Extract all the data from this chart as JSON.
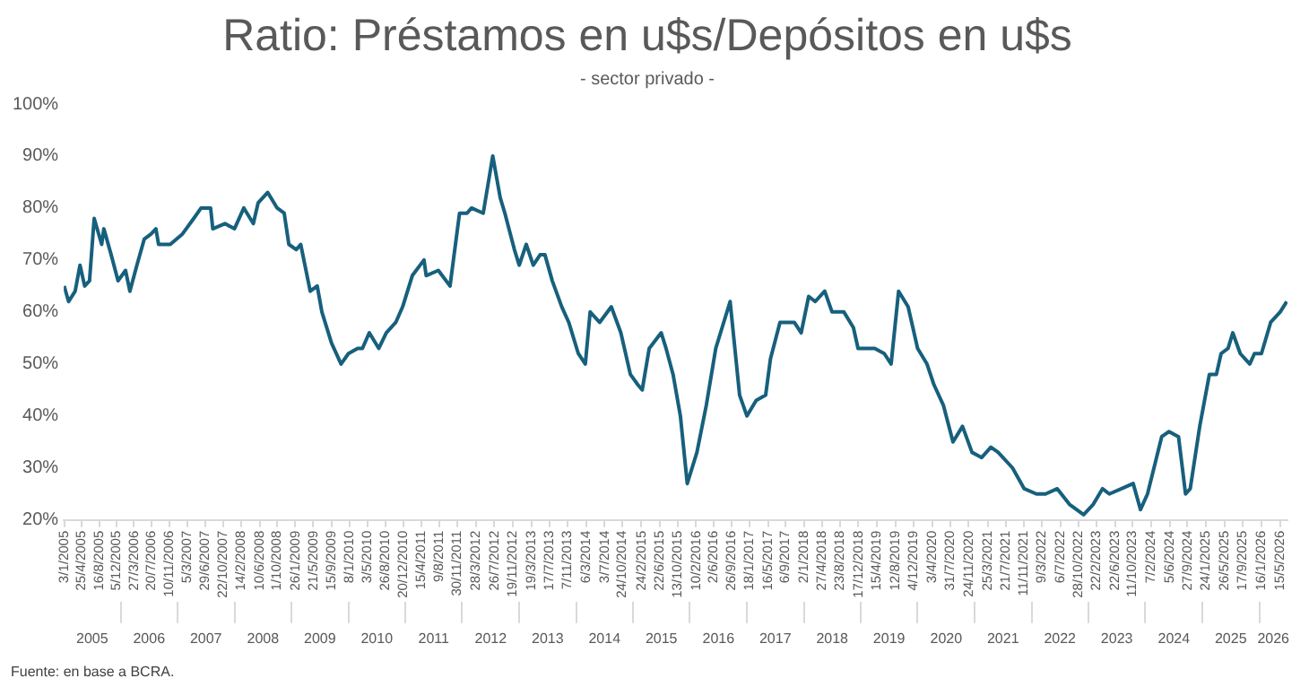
{
  "chart_data": {
    "type": "line",
    "title": "Ratio: Préstamos en u$s/Depósitos en u$s",
    "subtitle": "- sector privado -",
    "annotations": [
      "Fuente: en base a BCRA."
    ],
    "color": "#17607d",
    "grid": false,
    "legend": false,
    "marker": "none",
    "line_style": "solid",
    "x": [
      "2005-01-03",
      "2005-02-01",
      "2005-03-15",
      "2005-04-15",
      "2005-05-15",
      "2005-06-15",
      "2005-07-15",
      "2005-09-01",
      "2005-09-15",
      "2005-11-01",
      "2005-12-15",
      "2006-02-01",
      "2006-03-01",
      "2006-04-15",
      "2006-06-01",
      "2006-07-15",
      "2006-08-15",
      "2006-09-01",
      "2006-11-15",
      "2007-02-01",
      "2007-04-15",
      "2007-06-01",
      "2007-08-01",
      "2007-08-15",
      "2007-11-01",
      "2008-01-01",
      "2008-03-01",
      "2008-05-01",
      "2008-06-01",
      "2008-08-01",
      "2008-10-01",
      "2008-11-15",
      "2008-12-15",
      "2009-02-01",
      "2009-03-01",
      "2009-05-01",
      "2009-06-15",
      "2009-07-15",
      "2009-09-15",
      "2009-11-15",
      "2010-01-01",
      "2010-03-01",
      "2010-04-01",
      "2010-05-15",
      "2010-07-15",
      "2010-09-01",
      "2010-11-01",
      "2010-12-15",
      "2011-02-15",
      "2011-05-01",
      "2011-05-15",
      "2011-08-01",
      "2011-10-15",
      "2011-12-15",
      "2012-02-01",
      "2012-03-01",
      "2012-05-15",
      "2012-07-15",
      "2012-09-01",
      "2012-10-01",
      "2012-12-01",
      "2013-01-01",
      "2013-02-15",
      "2013-04-01",
      "2013-05-15",
      "2013-06-15",
      "2013-08-01",
      "2013-10-01",
      "2013-11-15",
      "2014-01-15",
      "2014-03-01",
      "2014-04-01",
      "2014-06-01",
      "2014-08-15",
      "2014-10-15",
      "2014-12-15",
      "2015-02-01",
      "2015-03-01",
      "2015-04-15",
      "2015-07-01",
      "2015-08-01",
      "2015-09-15",
      "2015-11-01",
      "2015-12-15",
      "2016-02-15",
      "2016-04-15",
      "2016-06-15",
      "2016-09-15",
      "2016-11-15",
      "2017-01-01",
      "2017-03-01",
      "2017-05-01",
      "2017-06-01",
      "2017-08-01",
      "2017-11-01",
      "2017-12-15",
      "2018-02-01",
      "2018-03-15",
      "2018-05-15",
      "2018-07-01",
      "2018-09-15",
      "2018-11-15",
      "2018-12-15",
      "2019-04-01",
      "2019-06-01",
      "2019-07-15",
      "2019-09-01",
      "2019-11-01",
      "2020-01-01",
      "2020-03-01",
      "2020-04-15",
      "2020-06-15",
      "2020-08-15",
      "2020-10-15",
      "2020-12-15",
      "2021-02-15",
      "2021-04-15",
      "2021-06-01",
      "2021-09-01",
      "2021-11-15",
      "2022-02-01",
      "2022-04-01",
      "2022-06-15",
      "2022-09-01",
      "2022-12-01",
      "2023-02-01",
      "2023-04-01",
      "2023-05-15",
      "2023-08-01",
      "2023-10-15",
      "2023-12-01",
      "2024-01-15",
      "2024-04-15",
      "2024-06-01",
      "2024-08-01",
      "2024-09-15",
      "2024-10-15",
      "2024-12-15",
      "2025-02-15",
      "2025-04-01",
      "2025-05-01",
      "2025-06-15",
      "2025-07-15",
      "2025-09-01",
      "2025-11-01",
      "2025-12-01",
      "2026-01-15",
      "2026-03-15",
      "2026-05-15",
      "2026-06-26"
    ],
    "values": [
      65,
      62,
      64,
      69,
      65,
      66,
      78,
      73,
      76,
      71,
      66,
      68,
      64,
      69,
      74,
      75,
      76,
      73,
      73,
      75,
      78,
      80,
      80,
      76,
      77,
      76,
      80,
      77,
      81,
      83,
      80,
      79,
      73,
      72,
      73,
      64,
      65,
      60,
      54,
      50,
      52,
      53,
      53,
      56,
      53,
      56,
      58,
      61,
      67,
      70,
      67,
      68,
      65,
      79,
      79,
      80,
      79,
      90,
      82,
      79,
      72,
      69,
      73,
      69,
      71,
      71,
      66,
      61,
      58,
      52,
      50,
      60,
      58,
      61,
      56,
      48,
      46,
      45,
      53,
      56,
      53,
      48,
      40,
      27,
      33,
      42,
      53,
      62,
      44,
      40,
      43,
      44,
      51,
      58,
      58,
      56,
      63,
      62,
      64,
      60,
      60,
      57,
      53,
      53,
      52,
      50,
      64,
      61,
      53,
      50,
      46,
      42,
      35,
      38,
      33,
      32,
      34,
      33,
      30,
      26,
      25,
      25,
      26,
      23,
      21,
      23,
      26,
      25,
      26,
      27,
      22,
      25,
      36,
      37,
      36,
      25,
      26,
      38,
      48,
      48,
      52,
      53,
      56,
      52,
      50,
      52,
      52,
      58,
      60,
      62
    ],
    "ylim": [
      20,
      100
    ],
    "yticks": [
      {
        "value": 20,
        "label": "20%"
      },
      {
        "value": 30,
        "label": "30%"
      },
      {
        "value": 40,
        "label": "40%"
      },
      {
        "value": 50,
        "label": "50%"
      },
      {
        "value": 60,
        "label": "60%"
      },
      {
        "value": 70,
        "label": "70%"
      },
      {
        "value": 80,
        "label": "80%"
      },
      {
        "value": 90,
        "label": "90%"
      },
      {
        "value": 100,
        "label": "100%"
      }
    ],
    "xlim": [
      "2005-01-01",
      "2026-07-01"
    ],
    "xticks": [
      {
        "value": "2005-01-03",
        "label": "3/1/2005"
      },
      {
        "value": "2005-04-25",
        "label": "25/4/2005"
      },
      {
        "value": "2005-08-16",
        "label": "16/8/2005"
      },
      {
        "value": "2005-12-05",
        "label": "5/12/2005"
      },
      {
        "value": "2006-03-27",
        "label": "27/3/2006"
      },
      {
        "value": "2006-07-20",
        "label": "20/7/2006"
      },
      {
        "value": "2006-11-10",
        "label": "10/11/2006"
      },
      {
        "value": "2007-03-05",
        "label": "5/3/2007"
      },
      {
        "value": "2007-06-29",
        "label": "29/6/2007"
      },
      {
        "value": "2007-10-22",
        "label": "22/10/2007"
      },
      {
        "value": "2008-02-14",
        "label": "14/2/2008"
      },
      {
        "value": "2008-06-10",
        "label": "10/6/2008"
      },
      {
        "value": "2008-10-01",
        "label": "1/10/2008"
      },
      {
        "value": "2009-01-26",
        "label": "26/1/2009"
      },
      {
        "value": "2009-05-21",
        "label": "21/5/2009"
      },
      {
        "value": "2009-09-15",
        "label": "15/9/2009"
      },
      {
        "value": "2010-01-08",
        "label": "8/1/2010"
      },
      {
        "value": "2010-05-03",
        "label": "3/5/2010"
      },
      {
        "value": "2010-08-26",
        "label": "26/8/2010"
      },
      {
        "value": "2010-12-20",
        "label": "20/12/2010"
      },
      {
        "value": "2011-04-15",
        "label": "15/4/2011"
      },
      {
        "value": "2011-08-09",
        "label": "9/8/2011"
      },
      {
        "value": "2011-11-30",
        "label": "30/11/2011"
      },
      {
        "value": "2012-03-28",
        "label": "28/3/2012"
      },
      {
        "value": "2012-07-26",
        "label": "26/7/2012"
      },
      {
        "value": "2012-11-19",
        "label": "19/11/2012"
      },
      {
        "value": "2013-03-19",
        "label": "19/3/2013"
      },
      {
        "value": "2013-07-17",
        "label": "17/7/2013"
      },
      {
        "value": "2013-11-07",
        "label": "7/11/2013"
      },
      {
        "value": "2014-03-06",
        "label": "6/3/2014"
      },
      {
        "value": "2014-07-03",
        "label": "3/7/2014"
      },
      {
        "value": "2014-10-24",
        "label": "24/10/2014"
      },
      {
        "value": "2015-02-24",
        "label": "24/2/2015"
      },
      {
        "value": "2015-06-22",
        "label": "22/6/2015"
      },
      {
        "value": "2015-10-13",
        "label": "13/10/2015"
      },
      {
        "value": "2016-02-10",
        "label": "10/2/2016"
      },
      {
        "value": "2016-06-02",
        "label": "2/6/2016"
      },
      {
        "value": "2016-09-26",
        "label": "26/9/2016"
      },
      {
        "value": "2017-01-18",
        "label": "18/1/2017"
      },
      {
        "value": "2017-05-16",
        "label": "16/5/2017"
      },
      {
        "value": "2017-09-06",
        "label": "6/9/2017"
      },
      {
        "value": "2018-01-02",
        "label": "2/1/2018"
      },
      {
        "value": "2018-04-27",
        "label": "27/4/2018"
      },
      {
        "value": "2018-08-23",
        "label": "23/8/2018"
      },
      {
        "value": "2018-12-17",
        "label": "17/12/2018"
      },
      {
        "value": "2019-04-15",
        "label": "15/4/2019"
      },
      {
        "value": "2019-08-12",
        "label": "12/8/2019"
      },
      {
        "value": "2019-12-04",
        "label": "4/12/2019"
      },
      {
        "value": "2020-04-03",
        "label": "3/4/2020"
      },
      {
        "value": "2020-07-31",
        "label": "31/7/2020"
      },
      {
        "value": "2020-11-24",
        "label": "24/11/2020"
      },
      {
        "value": "2021-03-25",
        "label": "25/3/2021"
      },
      {
        "value": "2021-07-21",
        "label": "21/7/2021"
      },
      {
        "value": "2021-11-11",
        "label": "11/11/2021"
      },
      {
        "value": "2022-03-09",
        "label": "9/3/2022"
      },
      {
        "value": "2022-07-06",
        "label": "6/7/2022"
      },
      {
        "value": "2022-10-28",
        "label": "28/10/2022"
      },
      {
        "value": "2023-02-22",
        "label": "22/2/2023"
      },
      {
        "value": "2023-06-22",
        "label": "22/6/2023"
      },
      {
        "value": "2023-10-11",
        "label": "11/10/2023"
      },
      {
        "value": "2024-02-07",
        "label": "7/2/2024"
      },
      {
        "value": "2024-06-05",
        "label": "5/6/2024"
      },
      {
        "value": "2024-09-27",
        "label": "27/9/2024"
      },
      {
        "value": "2025-01-24",
        "label": "24/1/2025"
      },
      {
        "value": "2025-05-26",
        "label": "26/5/2025"
      },
      {
        "value": "2025-09-17",
        "label": "17/9/2025"
      },
      {
        "value": "2026-01-16",
        "label": "16/1/2026"
      },
      {
        "value": "2026-05-15",
        "label": "15/5/2026"
      }
    ],
    "x2lim": [
      "2005-01-01",
      "2026-07-01"
    ],
    "x2ticks": [
      {
        "value": "2005-07-02",
        "label": "2005"
      },
      {
        "value": "2006-01-01",
        "label": null
      },
      {
        "value": "2006-07-02",
        "label": "2006"
      },
      {
        "value": "2007-01-01",
        "label": null
      },
      {
        "value": "2007-07-02",
        "label": "2007"
      },
      {
        "value": "2008-01-01",
        "label": null
      },
      {
        "value": "2008-07-02",
        "label": "2008"
      },
      {
        "value": "2009-01-01",
        "label": null
      },
      {
        "value": "2009-07-02",
        "label": "2009"
      },
      {
        "value": "2010-01-01",
        "label": null
      },
      {
        "value": "2010-07-02",
        "label": "2010"
      },
      {
        "value": "2011-01-01",
        "label": null
      },
      {
        "value": "2011-07-02",
        "label": "2011"
      },
      {
        "value": "2012-01-01",
        "label": null
      },
      {
        "value": "2012-07-02",
        "label": "2012"
      },
      {
        "value": "2013-01-01",
        "label": null
      },
      {
        "value": "2013-07-02",
        "label": "2013"
      },
      {
        "value": "2014-01-01",
        "label": null
      },
      {
        "value": "2014-07-02",
        "label": "2014"
      },
      {
        "value": "2015-01-01",
        "label": null
      },
      {
        "value": "2015-07-02",
        "label": "2015"
      },
      {
        "value": "2016-01-01",
        "label": null
      },
      {
        "value": "2016-07-02",
        "label": "2016"
      },
      {
        "value": "2017-01-01",
        "label": null
      },
      {
        "value": "2017-07-02",
        "label": "2017"
      },
      {
        "value": "2018-01-01",
        "label": null
      },
      {
        "value": "2018-07-02",
        "label": "2018"
      },
      {
        "value": "2019-01-01",
        "label": null
      },
      {
        "value": "2019-07-02",
        "label": "2019"
      },
      {
        "value": "2020-01-01",
        "label": null
      },
      {
        "value": "2020-07-02",
        "label": "2020"
      },
      {
        "value": "2021-01-01",
        "label": null
      },
      {
        "value": "2021-07-02",
        "label": "2021"
      },
      {
        "value": "2022-01-01",
        "label": null
      },
      {
        "value": "2022-07-02",
        "label": "2022"
      },
      {
        "value": "2023-01-01",
        "label": null
      },
      {
        "value": "2023-07-02",
        "label": "2023"
      },
      {
        "value": "2024-01-01",
        "label": null
      },
      {
        "value": "2024-07-02",
        "label": "2024"
      },
      {
        "value": "2025-01-01",
        "label": null
      },
      {
        "value": "2025-07-02",
        "label": "2025"
      },
      {
        "value": "2026-01-01",
        "label": null
      },
      {
        "value": "2026-04-01",
        "label": "2026"
      }
    ]
  }
}
